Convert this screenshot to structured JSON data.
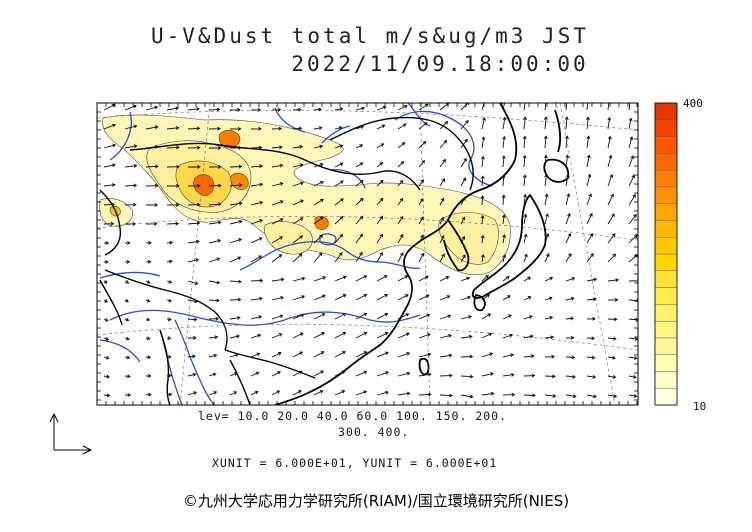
{
  "header": {
    "title_line1": "U-V&Dust total m/s&ug/m3 JST",
    "title_line2": "2022/11/09.18:00:00"
  },
  "footer": {
    "levels_line1": "lev= 10.0 20.0 40.0 60.0 100. 150. 200.",
    "levels_line2": "300. 400.",
    "units_line": "XUNIT = 6.000E+01, YUNIT = 6.000E+01",
    "copyright": "©九州大学応用力学研究所(RIAM)/国立環境研究所(NIES)"
  },
  "colorbar": {
    "max_label": "400",
    "min_label": "10",
    "colors": [
      "#ffffe0",
      "#fffdc8",
      "#fffbb0",
      "#fff898",
      "#fff580",
      "#fff266",
      "#ffec4c",
      "#ffe233",
      "#ffd600",
      "#ffc800",
      "#ffb800",
      "#ffa600",
      "#ff9200",
      "#ff7e00",
      "#ff6800",
      "#ff5400",
      "#f34400",
      "#e43800"
    ]
  },
  "chart_data": {
    "type": "heatmap",
    "title": "U-V&Dust total m/s&ug/m3 JST",
    "subtitle": "2022/11/09.18:00:00",
    "variable": "Dust total concentration with U-V wind vectors",
    "units": "ug/m3 (dust), m/s (wind)",
    "contour_levels": [
      10,
      20,
      40,
      60,
      100,
      150,
      200,
      300,
      400
    ],
    "colorbar_range": [
      10,
      400
    ],
    "vector_unit": {
      "xunit": 60.0,
      "yunit": 60.0
    },
    "colors": {
      "low": "#ffffe0",
      "mid": "#ffd600",
      "high": "#e43800",
      "coast": "#000000",
      "rivers": "#1e50dc"
    }
  }
}
